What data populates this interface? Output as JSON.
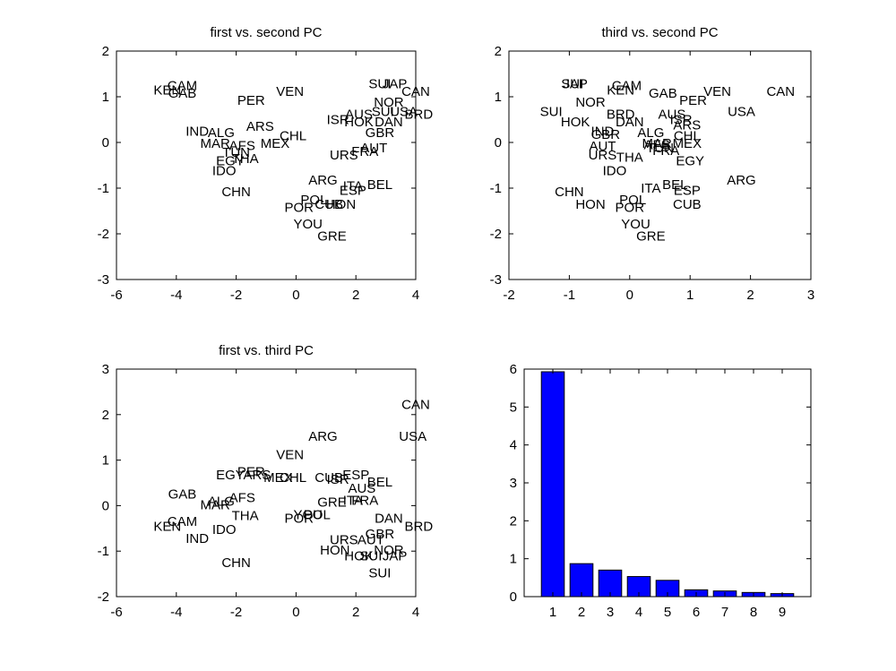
{
  "chart_data": [
    {
      "type": "scatter",
      "title": "first vs. second PC",
      "xlim": [
        -6,
        4
      ],
      "ylim": [
        -3,
        2
      ],
      "xticks": [
        "-6",
        "-4",
        "-2",
        "0",
        "2",
        "4"
      ],
      "yticks": [
        "-3",
        "-2",
        "-1",
        "0",
        "1",
        "2"
      ],
      "xlabel": "",
      "ylabel": "",
      "points": [
        {
          "label": "CAM",
          "x": -3.8,
          "y": 1.25
        },
        {
          "label": "KEN",
          "x": -4.3,
          "y": 1.15
        },
        {
          "label": "GAB",
          "x": -3.8,
          "y": 1.08
        },
        {
          "label": "PER",
          "x": -1.5,
          "y": 0.92
        },
        {
          "label": "VEN",
          "x": -0.2,
          "y": 1.12
        },
        {
          "label": "SUI",
          "x": 2.8,
          "y": 1.28
        },
        {
          "label": "JAP",
          "x": 3.3,
          "y": 1.28
        },
        {
          "label": "CAN",
          "x": 4.0,
          "y": 1.12
        },
        {
          "label": "NOR",
          "x": 3.1,
          "y": 0.88
        },
        {
          "label": "AUS",
          "x": 2.1,
          "y": 0.62
        },
        {
          "label": "SUI",
          "x": 2.9,
          "y": 0.68
        },
        {
          "label": "USA",
          "x": 3.6,
          "y": 0.68
        },
        {
          "label": "BRD",
          "x": 4.1,
          "y": 0.62
        },
        {
          "label": "ISR",
          "x": 1.4,
          "y": 0.5
        },
        {
          "label": "HOK",
          "x": 2.1,
          "y": 0.45
        },
        {
          "label": "DAN",
          "x": 3.1,
          "y": 0.45
        },
        {
          "label": "GBR",
          "x": 2.8,
          "y": 0.22
        },
        {
          "label": "ARS",
          "x": -1.2,
          "y": 0.35
        },
        {
          "label": "IND",
          "x": -3.3,
          "y": 0.25
        },
        {
          "label": "ALG",
          "x": -2.5,
          "y": 0.22
        },
        {
          "label": "CHL",
          "x": -0.1,
          "y": 0.15
        },
        {
          "label": "MAR",
          "x": -2.7,
          "y": -0.02
        },
        {
          "label": "AFS",
          "x": -1.8,
          "y": -0.07
        },
        {
          "label": "MEX",
          "x": -0.7,
          "y": -0.02
        },
        {
          "label": "AUT",
          "x": 2.6,
          "y": -0.12
        },
        {
          "label": "FRA",
          "x": 2.3,
          "y": -0.2
        },
        {
          "label": "URS",
          "x": 1.6,
          "y": -0.27
        },
        {
          "label": "TUN",
          "x": -2.0,
          "y": -0.22
        },
        {
          "label": "EGY",
          "x": -2.2,
          "y": -0.4
        },
        {
          "label": "THA",
          "x": -1.7,
          "y": -0.35
        },
        {
          "label": "IDO",
          "x": -2.4,
          "y": -0.62
        },
        {
          "label": "ARG",
          "x": 0.9,
          "y": -0.82
        },
        {
          "label": "ITA",
          "x": 1.9,
          "y": -0.95
        },
        {
          "label": "BEL",
          "x": 2.8,
          "y": -0.92
        },
        {
          "label": "ESP",
          "x": 1.9,
          "y": -1.05
        },
        {
          "label": "CHN",
          "x": -2.0,
          "y": -1.08
        },
        {
          "label": "POL",
          "x": 0.6,
          "y": -1.25
        },
        {
          "label": "CUB",
          "x": 1.1,
          "y": -1.35
        },
        {
          "label": "HON",
          "x": 1.5,
          "y": -1.35
        },
        {
          "label": "POR",
          "x": 0.1,
          "y": -1.42
        },
        {
          "label": "YOU",
          "x": 0.4,
          "y": -1.78
        },
        {
          "label": "GRE",
          "x": 1.2,
          "y": -2.05
        }
      ]
    },
    {
      "type": "scatter",
      "title": "third vs. second PC",
      "xlim": [
        -2,
        3
      ],
      "ylim": [
        -3,
        2
      ],
      "xticks": [
        "-2",
        "-1",
        "0",
        "1",
        "2",
        "3"
      ],
      "yticks": [
        "-3",
        "-2",
        "-1",
        "0",
        "1",
        "2"
      ],
      "xlabel": "",
      "ylabel": "",
      "points": [
        {
          "label": "SUI",
          "x": -0.95,
          "y": 1.28
        },
        {
          "label": "JAP",
          "x": -0.9,
          "y": 1.28
        },
        {
          "label": "CAM",
          "x": -0.05,
          "y": 1.25
        },
        {
          "label": "KEN",
          "x": -0.15,
          "y": 1.15
        },
        {
          "label": "GAB",
          "x": 0.55,
          "y": 1.08
        },
        {
          "label": "PER",
          "x": 1.05,
          "y": 0.92
        },
        {
          "label": "VEN",
          "x": 1.45,
          "y": 1.12
        },
        {
          "label": "CAN",
          "x": 2.5,
          "y": 1.12
        },
        {
          "label": "NOR",
          "x": -0.65,
          "y": 0.88
        },
        {
          "label": "USA",
          "x": 1.85,
          "y": 0.68
        },
        {
          "label": "SUI",
          "x": -1.3,
          "y": 0.68
        },
        {
          "label": "BRD",
          "x": -0.15,
          "y": 0.62
        },
        {
          "label": "AUS",
          "x": 0.7,
          "y": 0.62
        },
        {
          "label": "HOK",
          "x": -0.9,
          "y": 0.45
        },
        {
          "label": "DAN",
          "x": 0.0,
          "y": 0.45
        },
        {
          "label": "ISR",
          "x": 0.85,
          "y": 0.5
        },
        {
          "label": "ARS",
          "x": 0.95,
          "y": 0.38
        },
        {
          "label": "IND",
          "x": -0.45,
          "y": 0.25
        },
        {
          "label": "GBR",
          "x": -0.4,
          "y": 0.18
        },
        {
          "label": "ALG",
          "x": 0.35,
          "y": 0.22
        },
        {
          "label": "CHL",
          "x": 0.95,
          "y": 0.15
        },
        {
          "label": "AUT",
          "x": -0.45,
          "y": -0.08
        },
        {
          "label": "MAR",
          "x": 0.45,
          "y": -0.02
        },
        {
          "label": "AFS",
          "x": 0.45,
          "y": -0.05
        },
        {
          "label": "MEX",
          "x": 0.95,
          "y": -0.02
        },
        {
          "label": "FRA",
          "x": 0.6,
          "y": -0.18
        },
        {
          "label": "URS",
          "x": -0.45,
          "y": -0.27
        },
        {
          "label": "THA",
          "x": 0.0,
          "y": -0.32
        },
        {
          "label": "TUN",
          "x": 0.5,
          "y": -0.12
        },
        {
          "label": "EGY",
          "x": 1.0,
          "y": -0.4
        },
        {
          "label": "IDO",
          "x": -0.25,
          "y": -0.62
        },
        {
          "label": "ARG",
          "x": 1.85,
          "y": -0.82
        },
        {
          "label": "ITA",
          "x": 0.35,
          "y": -1.0
        },
        {
          "label": "BEL",
          "x": 0.75,
          "y": -0.92
        },
        {
          "label": "ESP",
          "x": 0.95,
          "y": -1.05
        },
        {
          "label": "CHN",
          "x": -1.0,
          "y": -1.08
        },
        {
          "label": "POL",
          "x": 0.05,
          "y": -1.25
        },
        {
          "label": "CUB",
          "x": 0.95,
          "y": -1.35
        },
        {
          "label": "HON",
          "x": -0.65,
          "y": -1.35
        },
        {
          "label": "POR",
          "x": 0.0,
          "y": -1.42
        },
        {
          "label": "YOU",
          "x": 0.1,
          "y": -1.78
        },
        {
          "label": "GRE",
          "x": 0.35,
          "y": -2.05
        }
      ]
    },
    {
      "type": "scatter",
      "title": "first vs. third PC",
      "xlim": [
        -6,
        4
      ],
      "ylim": [
        -2,
        3
      ],
      "xticks": [
        "-6",
        "-4",
        "-2",
        "0",
        "2",
        "4"
      ],
      "yticks": [
        "-2",
        "-1",
        "0",
        "1",
        "2",
        "3"
      ],
      "xlabel": "",
      "ylabel": "",
      "points": [
        {
          "label": "CAN",
          "x": 4.0,
          "y": 2.22
        },
        {
          "label": "USA",
          "x": 3.9,
          "y": 1.52
        },
        {
          "label": "ARG",
          "x": 0.9,
          "y": 1.52
        },
        {
          "label": "VEN",
          "x": -0.2,
          "y": 1.12
        },
        {
          "label": "EGY",
          "x": -2.2,
          "y": 0.68
        },
        {
          "label": "PER",
          "x": -1.5,
          "y": 0.75
        },
        {
          "label": "ARS",
          "x": -1.3,
          "y": 0.68
        },
        {
          "label": "MEX",
          "x": -0.6,
          "y": 0.62
        },
        {
          "label": "CHL",
          "x": -0.1,
          "y": 0.62
        },
        {
          "label": "CUB",
          "x": 1.1,
          "y": 0.62
        },
        {
          "label": "ISR",
          "x": 1.4,
          "y": 0.58
        },
        {
          "label": "ESP",
          "x": 2.0,
          "y": 0.68
        },
        {
          "label": "BEL",
          "x": 2.8,
          "y": 0.52
        },
        {
          "label": "AUS",
          "x": 2.2,
          "y": 0.38
        },
        {
          "label": "GAB",
          "x": -3.8,
          "y": 0.25
        },
        {
          "label": "AFS",
          "x": -1.8,
          "y": 0.18
        },
        {
          "label": "ALG",
          "x": -2.5,
          "y": 0.1
        },
        {
          "label": "MAR",
          "x": -2.7,
          "y": 0.02
        },
        {
          "label": "GRE",
          "x": 1.2,
          "y": 0.08
        },
        {
          "label": "ITA",
          "x": 1.9,
          "y": 0.12
        },
        {
          "label": "FRA",
          "x": 2.3,
          "y": 0.12
        },
        {
          "label": "THA",
          "x": -1.7,
          "y": -0.22
        },
        {
          "label": "YOU",
          "x": 0.4,
          "y": -0.2
        },
        {
          "label": "POL",
          "x": 0.7,
          "y": -0.2
        },
        {
          "label": "POR",
          "x": 0.1,
          "y": -0.28
        },
        {
          "label": "DAN",
          "x": 3.1,
          "y": -0.28
        },
        {
          "label": "CAM",
          "x": -3.8,
          "y": -0.35
        },
        {
          "label": "KEN",
          "x": -4.3,
          "y": -0.45
        },
        {
          "label": "BRD",
          "x": 4.1,
          "y": -0.45
        },
        {
          "label": "IDO",
          "x": -2.4,
          "y": -0.52
        },
        {
          "label": "IND",
          "x": -3.3,
          "y": -0.72
        },
        {
          "label": "GBR",
          "x": 2.8,
          "y": -0.62
        },
        {
          "label": "URS",
          "x": 1.6,
          "y": -0.75
        },
        {
          "label": "AUT",
          "x": 2.5,
          "y": -0.75
        },
        {
          "label": "HON",
          "x": 1.3,
          "y": -0.98
        },
        {
          "label": "NOR",
          "x": 3.1,
          "y": -0.98
        },
        {
          "label": "HOK",
          "x": 2.1,
          "y": -1.1
        },
        {
          "label": "SUI",
          "x": 2.5,
          "y": -1.1
        },
        {
          "label": "JAP",
          "x": 3.3,
          "y": -1.1
        },
        {
          "label": "CHN",
          "x": -2.0,
          "y": -1.25
        },
        {
          "label": "SUI",
          "x": 2.8,
          "y": -1.48
        }
      ]
    },
    {
      "type": "bar",
      "title": "",
      "categories": [
        "1",
        "2",
        "3",
        "4",
        "5",
        "6",
        "7",
        "8",
        "9"
      ],
      "values": [
        5.93,
        0.87,
        0.7,
        0.53,
        0.43,
        0.18,
        0.15,
        0.11,
        0.08
      ],
      "ylim": [
        0,
        6
      ],
      "yticks": [
        "0",
        "1",
        "2",
        "3",
        "4",
        "5",
        "6"
      ],
      "xlabel": "",
      "ylabel": "",
      "bar_color": "#0000ff"
    }
  ]
}
